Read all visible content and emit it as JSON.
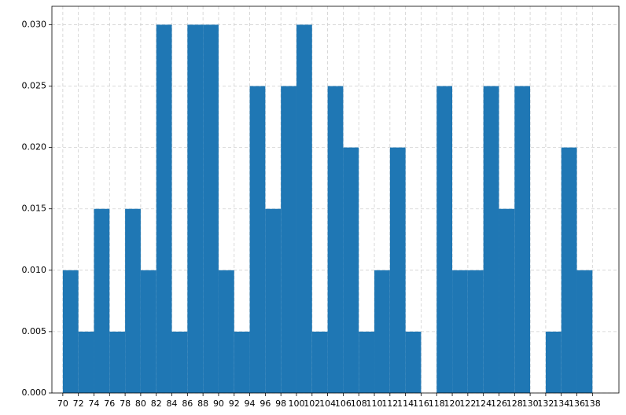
{
  "chart_data": {
    "type": "histogram",
    "bins": [
      70,
      72,
      74,
      76,
      78,
      80,
      82,
      84,
      86,
      88,
      90,
      92,
      94,
      96,
      98,
      100,
      102,
      104,
      106,
      108,
      110,
      112,
      114,
      116,
      118,
      120,
      122,
      124,
      126,
      128,
      130,
      132,
      134,
      136,
      138
    ],
    "values": [
      0.01,
      0.005,
      0.015,
      0.005,
      0.015,
      0.01,
      0.03,
      0.005,
      0.03,
      0.03,
      0.01,
      0.005,
      0.025,
      0.015,
      0.025,
      0.03,
      0.005,
      0.025,
      0.02,
      0.005,
      0.01,
      0.02,
      0.005,
      0,
      0.025,
      0.01,
      0.01,
      0.025,
      0.015,
      0.025,
      0,
      0.005,
      0.02,
      0.01
    ],
    "color": "#1f77b4",
    "xlim": [
      68.6,
      141.4
    ],
    "xticks": [
      70,
      72,
      74,
      76,
      78,
      80,
      82,
      84,
      86,
      88,
      90,
      92,
      94,
      96,
      98,
      100,
      102,
      104,
      106,
      108,
      110,
      112,
      114,
      116,
      118,
      120,
      122,
      124,
      126,
      128,
      130,
      132,
      134,
      136,
      138
    ],
    "ylim": [
      0,
      0.0315
    ],
    "yticks": [
      {
        "value": 0,
        "label": "0.000"
      },
      {
        "value": 0.005,
        "label": "0.005"
      },
      {
        "value": 0.01,
        "label": "0.010"
      },
      {
        "value": 0.015,
        "label": "0.015"
      },
      {
        "value": 0.02,
        "label": "0.020"
      },
      {
        "value": 0.025,
        "label": "0.025"
      },
      {
        "value": 0.03,
        "label": "0.030"
      }
    ],
    "grid": true
  }
}
